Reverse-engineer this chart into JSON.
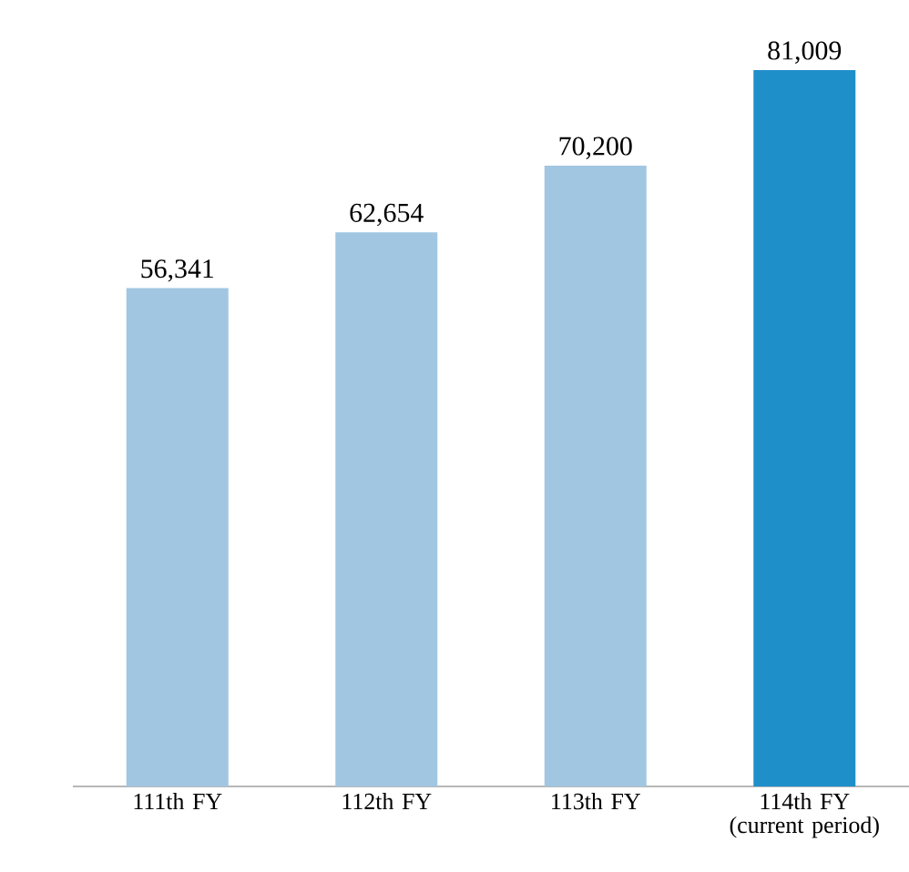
{
  "chart_data": {
    "type": "bar",
    "categories": [
      "111th FY",
      "112th FY",
      "113th FY",
      "114th FY (current period)"
    ],
    "values": [
      56341,
      62654,
      70200,
      81009
    ],
    "colors": [
      "#a1c6e2",
      "#a1c6e2",
      "#a1c6e2",
      "#1f8fca"
    ],
    "value_labels": [
      "56,341",
      "62,654",
      "70,200",
      "81,009"
    ]
  }
}
